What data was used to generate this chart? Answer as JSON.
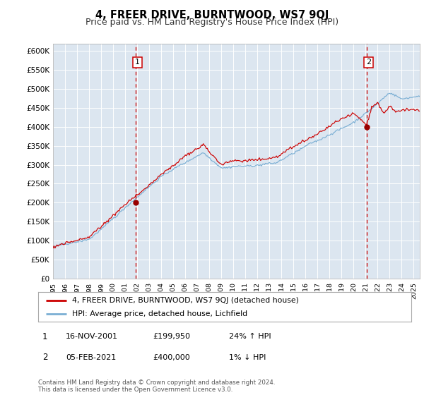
{
  "title": "4, FREER DRIVE, BURNTWOOD, WS7 9QJ",
  "subtitle": "Price paid vs. HM Land Registry's House Price Index (HPI)",
  "ylabel_ticks": [
    "£0",
    "£50K",
    "£100K",
    "£150K",
    "£200K",
    "£250K",
    "£300K",
    "£350K",
    "£400K",
    "£450K",
    "£500K",
    "£550K",
    "£600K"
  ],
  "ylim": [
    0,
    620000
  ],
  "yticks": [
    0,
    50000,
    100000,
    150000,
    200000,
    250000,
    300000,
    350000,
    400000,
    450000,
    500000,
    550000,
    600000
  ],
  "xlim_start": 1995.0,
  "xlim_end": 2025.5,
  "bg_color": "#dce6f0",
  "red_line_color": "#cc0000",
  "blue_line_color": "#7bafd4",
  "vline_color": "#cc0000",
  "marker_color": "#990000",
  "sale1_x": 2001.88,
  "sale1_y": 199950,
  "sale2_x": 2021.09,
  "sale2_y": 400000,
  "legend_label1": "4, FREER DRIVE, BURNTWOOD, WS7 9QJ (detached house)",
  "legend_label2": "HPI: Average price, detached house, Lichfield",
  "table_row1": [
    "1",
    "16-NOV-2001",
    "£199,950",
    "24% ↑ HPI"
  ],
  "table_row2": [
    "2",
    "05-FEB-2021",
    "£400,000",
    "1% ↓ HPI"
  ],
  "footer": "Contains HM Land Registry data © Crown copyright and database right 2024.\nThis data is licensed under the Open Government Licence v3.0.",
  "title_fontsize": 10.5,
  "subtitle_fontsize": 9
}
